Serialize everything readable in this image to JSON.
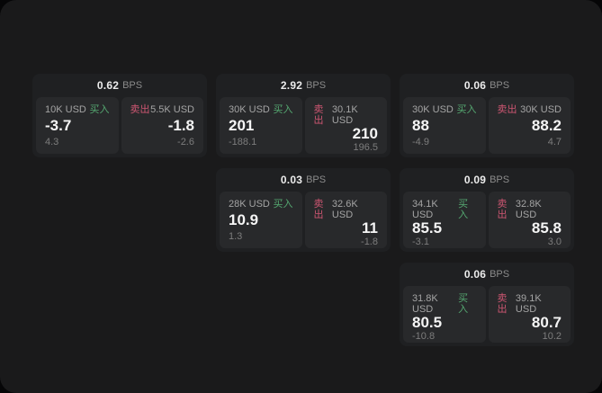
{
  "labels": {
    "bps_suffix": "BPS",
    "buy": "买入",
    "sell": "卖出"
  },
  "colors": {
    "buy_green": "#55a871",
    "sell_red": "#cd5672",
    "page_background": "#1a1a1b",
    "card_background": "#1f2022",
    "panel_background": "#28292b"
  },
  "cards": [
    {
      "row": 1,
      "col": 1,
      "bps": "0.62",
      "buy": {
        "size": "10K USD",
        "value": "-3.7",
        "sub": "4.3"
      },
      "sell": {
        "size": "5.5K USD",
        "value": "-1.8",
        "sub": "-2.6"
      }
    },
    {
      "row": 1,
      "col": 2,
      "bps": "2.92",
      "buy": {
        "size": "30K USD",
        "value": "201",
        "sub": "-188.1"
      },
      "sell": {
        "size": "30.1K USD",
        "value": "210",
        "sub": "196.5"
      }
    },
    {
      "row": 1,
      "col": 3,
      "bps": "0.06",
      "buy": {
        "size": "30K USD",
        "value": "88",
        "sub": "-4.9"
      },
      "sell": {
        "size": "30K USD",
        "value": "88.2",
        "sub": "4.7"
      }
    },
    {
      "row": 2,
      "col": 2,
      "bps": "0.03",
      "buy": {
        "size": "28K USD",
        "value": "10.9",
        "sub": "1.3"
      },
      "sell": {
        "size": "32.6K USD",
        "value": "11",
        "sub": "-1.8"
      }
    },
    {
      "row": 2,
      "col": 3,
      "bps": "0.09",
      "buy": {
        "size": "34.1K USD",
        "value": "85.5",
        "sub": "-3.1"
      },
      "sell": {
        "size": "32.8K USD",
        "value": "85.8",
        "sub": "3.0"
      }
    },
    {
      "row": 3,
      "col": 3,
      "bps": "0.06",
      "buy": {
        "size": "31.8K USD",
        "value": "80.5",
        "sub": "-10.8"
      },
      "sell": {
        "size": "39.1K USD",
        "value": "80.7",
        "sub": "10.2"
      }
    }
  ]
}
